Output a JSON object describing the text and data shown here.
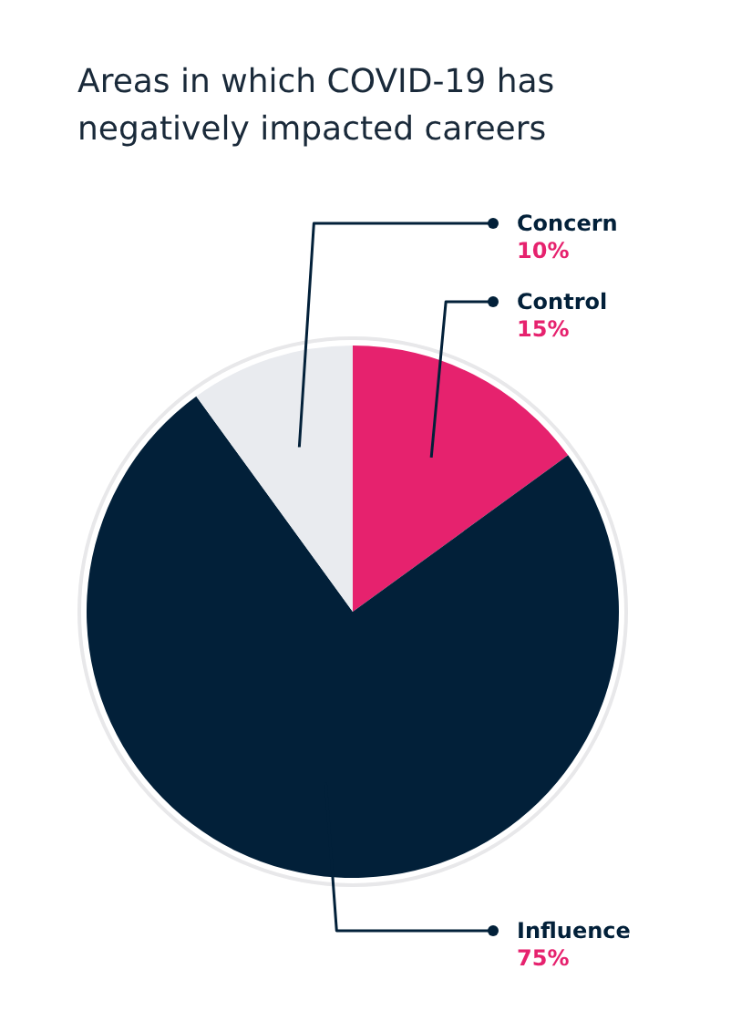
{
  "chart_data": {
    "type": "pie",
    "title": "Areas in which COVID-19 has negatively impacted careers",
    "categories": [
      "Control",
      "Influence",
      "Concern"
    ],
    "values": [
      15,
      75,
      10
    ],
    "value_labels": [
      "15%",
      "75%",
      "10%"
    ],
    "colors": [
      "#e6226e",
      "#022039",
      "#e9ebef"
    ]
  }
}
